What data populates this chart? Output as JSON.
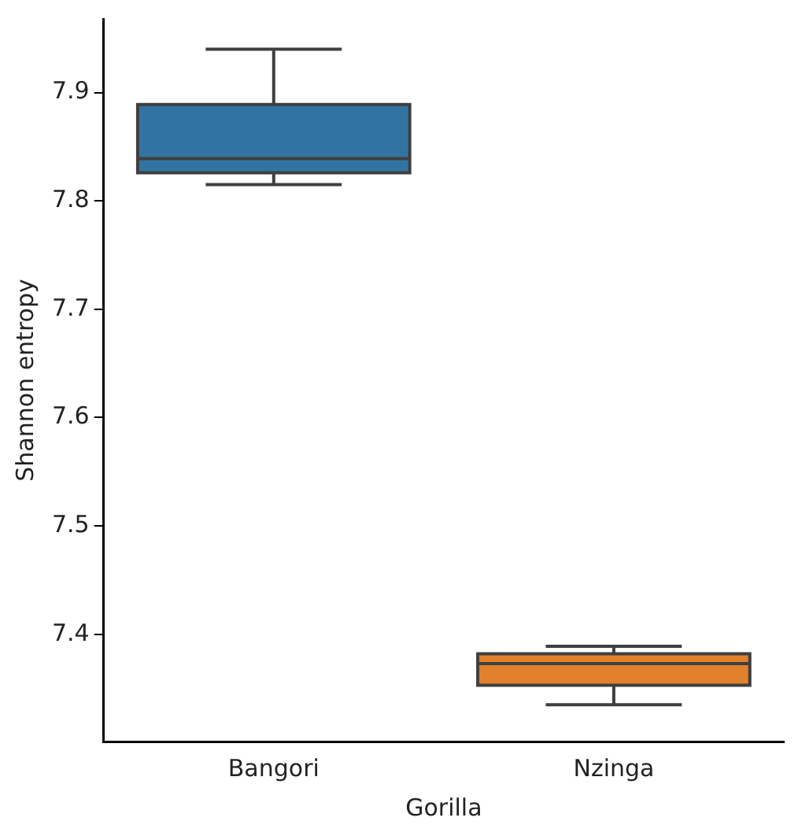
{
  "chart_data": {
    "type": "box",
    "categories": [
      "Bangori",
      "Nzinga"
    ],
    "boxes": [
      {
        "low": 7.815,
        "q1": 7.826,
        "median": 7.839,
        "q3": 7.889,
        "high": 7.94
      },
      {
        "low": 7.335,
        "q1": 7.353,
        "median": 7.373,
        "q3": 7.382,
        "high": 7.389
      }
    ],
    "colors": [
      "#3274a1",
      "#e1812c"
    ],
    "xlabel": "Gorilla",
    "ylabel": "Shannon entropy",
    "ylim": [
      7.301,
      7.968
    ],
    "yticks": [
      7.4,
      7.5,
      7.6,
      7.7,
      7.8,
      7.9
    ],
    "grid": false,
    "legend": false
  }
}
